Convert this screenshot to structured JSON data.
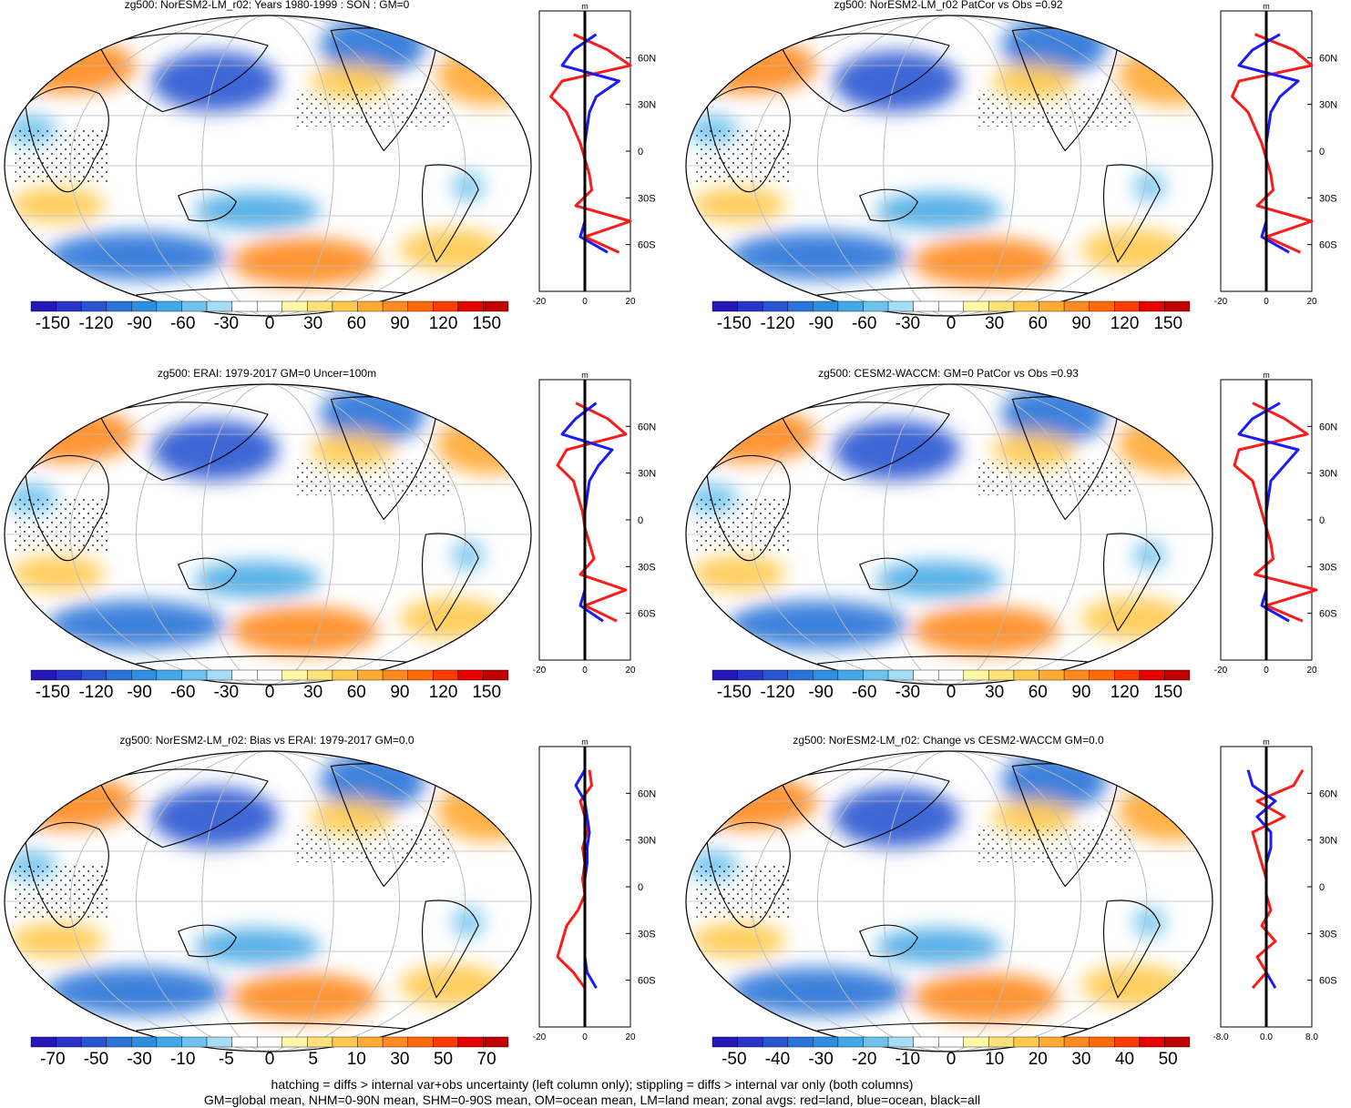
{
  "colors": {
    "red": "#ff1a1a",
    "blue": "#1a1aff",
    "black": "#000000",
    "grid": "#bbbbbb",
    "warm": [
      "#fff7a8",
      "#ffe27a",
      "#ffc94d",
      "#ffaa33",
      "#ff8a1f",
      "#ff6a0a",
      "#ff3b00",
      "#e60000",
      "#c00000"
    ],
    "cool": [
      "#a6dcf5",
      "#6fc2ee",
      "#45a8e6",
      "#2f8fdf",
      "#2a73d8",
      "#2a55d0",
      "#2a35c8",
      "#2618b8"
    ]
  },
  "footer": {
    "line1": "hatching = diffs > internal var+obs uncertainty (left column only); stippling = diffs > internal var only (both columns)",
    "line2": "GM=global mean, NHM=0-90N mean, SHM=0-90S mean, OM=ocean mean, LM=land mean; zonal avgs: red=land, blue=ocean, black=all"
  },
  "chart_data": [
    {
      "type": "heatmap",
      "title": "zg500: NorESM2-LM_r02: Years 1980-1999 : SON : GM=0",
      "colorbar_labels": [
        "-150",
        "-120",
        "-90",
        "-60",
        "-30",
        "0",
        "30",
        "60",
        "90",
        "120",
        "150"
      ],
      "zonal": {
        "unit": "m",
        "xlim": [
          -20,
          20
        ],
        "x_ticks": [
          "-20",
          "0",
          "20"
        ],
        "lat_ticks": [
          "60N",
          "30N",
          "0",
          "30S",
          "60S"
        ],
        "lat": [
          75,
          65,
          55,
          45,
          35,
          25,
          15,
          5,
          -5,
          -15,
          -25,
          -35,
          -45,
          -55,
          -65
        ],
        "land": [
          -5,
          10,
          20,
          -10,
          -15,
          -8,
          -5,
          -2,
          0,
          2,
          3,
          -4,
          20,
          0,
          15
        ],
        "ocean": [
          5,
          -5,
          -10,
          15,
          5,
          2,
          1,
          0,
          0,
          0,
          0,
          0,
          0,
          -2,
          10
        ]
      }
    },
    {
      "type": "heatmap",
      "title": "zg500: NorESM2-LM_r02 PatCor vs Obs =0.92",
      "colorbar_labels": [
        "-150",
        "-120",
        "-90",
        "-60",
        "-30",
        "0",
        "30",
        "60",
        "90",
        "120",
        "150"
      ],
      "zonal": {
        "unit": "m",
        "xlim": [
          -20,
          20
        ],
        "x_ticks": [
          "-20",
          "0",
          "20"
        ],
        "lat_ticks": [
          "60N",
          "30N",
          "0",
          "30S",
          "60S"
        ],
        "lat": [
          75,
          65,
          55,
          45,
          35,
          25,
          15,
          5,
          -5,
          -15,
          -25,
          -35,
          -45,
          -55,
          -65
        ],
        "land": [
          -5,
          12,
          20,
          -12,
          -15,
          -8,
          -5,
          -2,
          0,
          2,
          3,
          -4,
          20,
          0,
          15
        ],
        "ocean": [
          6,
          -6,
          -12,
          14,
          6,
          2,
          1,
          0,
          0,
          0,
          0,
          0,
          0,
          -2,
          10
        ]
      }
    },
    {
      "type": "heatmap",
      "title": "zg500: ERAI: 1979-2017 GM=0 Uncer=100m",
      "colorbar_labels": [
        "-150",
        "-120",
        "-90",
        "-60",
        "-30",
        "0",
        "30",
        "60",
        "90",
        "120",
        "150"
      ],
      "zonal": {
        "unit": "m",
        "xlim": [
          -20,
          20
        ],
        "x_ticks": [
          "-20",
          "0",
          "20"
        ],
        "lat_ticks": [
          "60N",
          "30N",
          "0",
          "30S",
          "60S"
        ],
        "lat": [
          75,
          65,
          55,
          45,
          35,
          25,
          15,
          5,
          -5,
          -15,
          -25,
          -35,
          -45,
          -55,
          -65
        ],
        "land": [
          -4,
          10,
          18,
          -8,
          -12,
          -5,
          -3,
          -1,
          0,
          2,
          4,
          -2,
          18,
          0,
          14
        ],
        "ocean": [
          5,
          -4,
          -10,
          12,
          6,
          2,
          1,
          0,
          0,
          0,
          0,
          0,
          0,
          -2,
          8
        ]
      }
    },
    {
      "type": "heatmap",
      "title": "zg500: CESM2-WACCM: GM=0 PatCor vs Obs =0.93",
      "colorbar_labels": [
        "-150",
        "-120",
        "-90",
        "-60",
        "-30",
        "0",
        "30",
        "60",
        "90",
        "120",
        "150"
      ],
      "zonal": {
        "unit": "m",
        "xlim": [
          -20,
          20
        ],
        "x_ticks": [
          "-20",
          "0",
          "20"
        ],
        "lat_ticks": [
          "60N",
          "30N",
          "0",
          "30S",
          "60S"
        ],
        "lat": [
          75,
          65,
          55,
          45,
          35,
          25,
          15,
          5,
          -5,
          -15,
          -25,
          -35,
          -45,
          -55,
          -65
        ],
        "land": [
          -6,
          8,
          18,
          -12,
          -14,
          -6,
          -4,
          -2,
          0,
          2,
          3,
          -5,
          22,
          0,
          16
        ],
        "ocean": [
          6,
          -6,
          -12,
          14,
          8,
          2,
          1,
          0,
          0,
          0,
          0,
          0,
          0,
          -2,
          10
        ]
      }
    },
    {
      "type": "heatmap",
      "title": "zg500: NorESM2-LM_r02: Bias vs ERAI: 1979-2017  GM=0.0",
      "colorbar_labels": [
        "-70",
        "-50",
        "-30",
        "-10",
        "-5",
        "0",
        "5",
        "10",
        "30",
        "50",
        "70"
      ],
      "zonal": {
        "unit": "m",
        "xlim": [
          -20,
          20
        ],
        "x_ticks": [
          "-20",
          "0",
          "20"
        ],
        "lat_ticks": [
          "60N",
          "30N",
          "0",
          "30S",
          "60S"
        ],
        "lat": [
          75,
          65,
          55,
          45,
          35,
          25,
          15,
          5,
          -5,
          -15,
          -25,
          -35,
          -45,
          -55,
          -65
        ],
        "land": [
          2,
          3,
          -2,
          0,
          1,
          -1,
          0,
          -1,
          0,
          -3,
          -8,
          -10,
          -12,
          -5,
          0
        ],
        "ocean": [
          0,
          -4,
          0,
          1,
          2,
          1,
          1,
          0,
          0,
          0,
          0,
          0,
          0,
          1,
          5
        ]
      }
    },
    {
      "type": "heatmap",
      "title": "zg500: NorESM2-LM_r02: Change vs CESM2-WACCM GM=0.0",
      "colorbar_labels": [
        "-50",
        "-40",
        "-30",
        "-20",
        "-10",
        "0",
        "10",
        "20",
        "30",
        "40",
        "50"
      ],
      "zonal": {
        "unit": "m",
        "xlim": [
          -10,
          10
        ],
        "x_ticks": [
          "-8.0",
          "0.0",
          "8.0"
        ],
        "lat_ticks": [
          "60N",
          "30N",
          "0",
          "30S",
          "60S"
        ],
        "lat": [
          75,
          65,
          55,
          45,
          35,
          25,
          15,
          5,
          -5,
          -15,
          -25,
          -35,
          -45,
          -55,
          -65
        ],
        "land": [
          8,
          6,
          -2,
          4,
          -3,
          -2,
          -1,
          0,
          0,
          1,
          -1,
          2,
          -2,
          0,
          -3
        ],
        "ocean": [
          -4,
          -3,
          2,
          -2,
          1,
          1,
          0,
          0,
          0,
          0,
          0,
          0,
          0,
          0,
          2
        ]
      }
    }
  ]
}
